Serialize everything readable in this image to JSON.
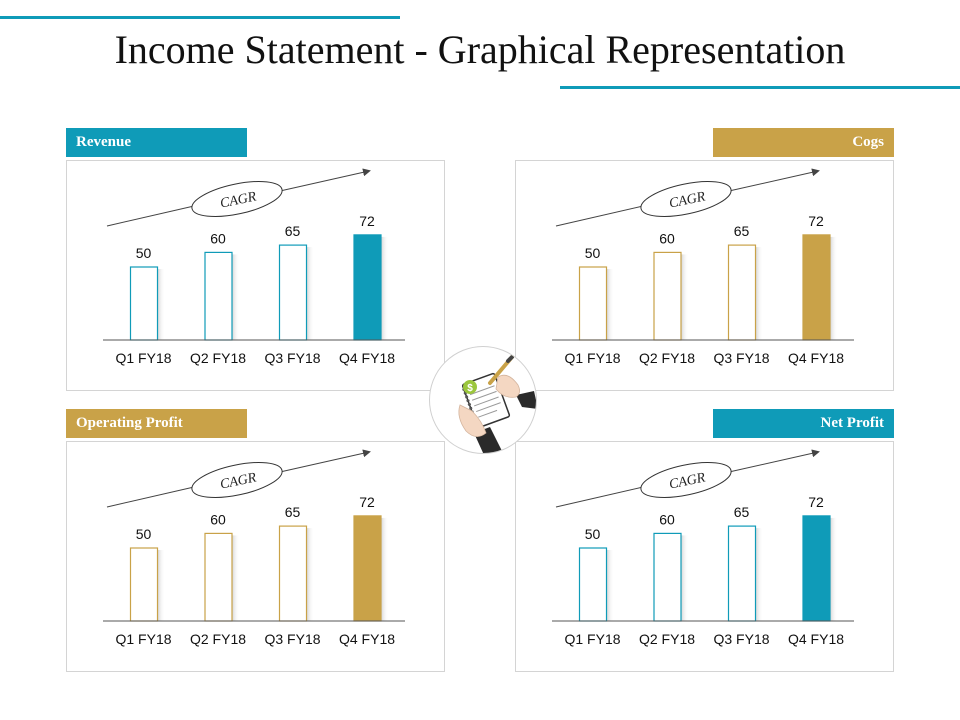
{
  "title": "Income Statement - Graphical Representation",
  "colors": {
    "teal": "#0f9bb8",
    "gold": "#c9a248"
  },
  "cagr_label": "CAGR",
  "center_icon": "budget-clipboard-hands-icon",
  "chart_data": [
    {
      "type": "bar",
      "title": "Revenue",
      "accent": "#0f9bb8",
      "categories": [
        "Q1 FY18",
        "Q2 FY18",
        "Q3 FY18",
        "Q4 FY18"
      ],
      "values": [
        50,
        60,
        65,
        72
      ],
      "ylim": [
        0,
        100
      ]
    },
    {
      "type": "bar",
      "title": "Cogs",
      "accent": "#c9a248",
      "categories": [
        "Q1 FY18",
        "Q2 FY18",
        "Q3 FY18",
        "Q4 FY18"
      ],
      "values": [
        50,
        60,
        65,
        72
      ],
      "ylim": [
        0,
        100
      ]
    },
    {
      "type": "bar",
      "title": "Operating Profit",
      "accent": "#c9a248",
      "categories": [
        "Q1 FY18",
        "Q2 FY18",
        "Q3 FY18",
        "Q4 FY18"
      ],
      "values": [
        50,
        60,
        65,
        72
      ],
      "ylim": [
        0,
        100
      ]
    },
    {
      "type": "bar",
      "title": "Net Profit",
      "accent": "#0f9bb8",
      "categories": [
        "Q1 FY18",
        "Q2 FY18",
        "Q3 FY18",
        "Q4 FY18"
      ],
      "values": [
        50,
        60,
        65,
        72
      ],
      "ylim": [
        0,
        100
      ]
    }
  ]
}
